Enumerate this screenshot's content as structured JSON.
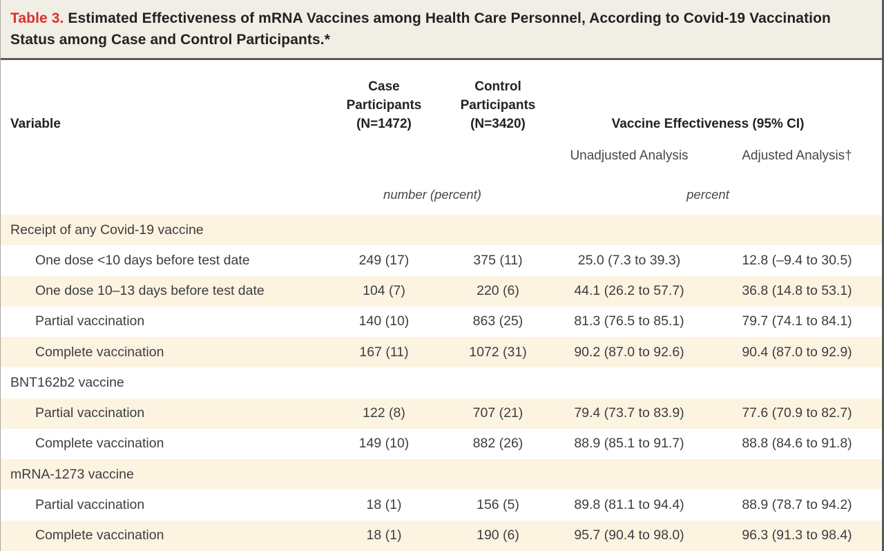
{
  "title": {
    "label": "Table 3.",
    "text": "Estimated Effectiveness of mRNA Vaccines among Health Care Personnel, According to Covid-19 Vaccination Status among Case and Control Participants.*"
  },
  "header": {
    "variable": "Variable",
    "case_participants": "Case\nParticipants\n(N=1472)",
    "control_participants": "Control\nParticipants\n(N=3420)",
    "effectiveness_group": "Vaccine Effectiveness (95% CI)",
    "unadjusted": "Unadjusted Analysis",
    "adjusted": "Adjusted Analysis†",
    "units_counts": "number (percent)",
    "units_effectiveness": "percent"
  },
  "chart_data": {
    "type": "table",
    "title": "Table 3. Estimated Effectiveness of mRNA Vaccines among Health Care Personnel, According to Covid-19 Vaccination Status among Case and Control Participants.*",
    "columns": [
      "Variable",
      "Case Participants (N=1472)",
      "Control Participants (N=3420)",
      "Vaccine Effectiveness (95% CI) — Unadjusted Analysis",
      "Vaccine Effectiveness (95% CI) — Adjusted Analysis†"
    ],
    "rows": [
      {
        "label": "Receipt of any Covid-19 vaccine",
        "group_header": true,
        "indent": false,
        "shaded": true,
        "case": "",
        "control": "",
        "unadjusted": "",
        "adjusted": ""
      },
      {
        "label": "One dose <10 days before test date",
        "group_header": false,
        "indent": true,
        "shaded": false,
        "case": "249 (17)",
        "control": "375 (11)",
        "unadjusted": "25.0 (7.3 to 39.3)",
        "adjusted": "12.8 (–9.4 to 30.5)"
      },
      {
        "label": "One dose 10–13 days before test date",
        "group_header": false,
        "indent": true,
        "shaded": true,
        "case": "104 (7)",
        "control": "220 (6)",
        "unadjusted": "44.1 (26.2 to 57.7)",
        "adjusted": "36.8 (14.8 to 53.1)"
      },
      {
        "label": "Partial vaccination",
        "group_header": false,
        "indent": true,
        "shaded": false,
        "case": "140 (10)",
        "control": "863 (25)",
        "unadjusted": "81.3 (76.5 to 85.1)",
        "adjusted": "79.7 (74.1 to 84.1)"
      },
      {
        "label": "Complete vaccination",
        "group_header": false,
        "indent": true,
        "shaded": true,
        "case": "167 (11)",
        "control": "1072 (31)",
        "unadjusted": "90.2 (87.0 to 92.6)",
        "adjusted": "90.4 (87.0 to 92.9)"
      },
      {
        "label": "BNT162b2 vaccine",
        "group_header": true,
        "indent": false,
        "shaded": false,
        "case": "",
        "control": "",
        "unadjusted": "",
        "adjusted": ""
      },
      {
        "label": "Partial vaccination",
        "group_header": false,
        "indent": true,
        "shaded": true,
        "case": "122 (8)",
        "control": "707 (21)",
        "unadjusted": "79.4 (73.7 to 83.9)",
        "adjusted": "77.6 (70.9 to 82.7)"
      },
      {
        "label": "Complete vaccination",
        "group_header": false,
        "indent": true,
        "shaded": false,
        "case": "149 (10)",
        "control": "882 (26)",
        "unadjusted": "88.9 (85.1 to 91.7)",
        "adjusted": "88.8 (84.6 to 91.8)"
      },
      {
        "label": "mRNA-1273 vaccine",
        "group_header": true,
        "indent": false,
        "shaded": true,
        "case": "",
        "control": "",
        "unadjusted": "",
        "adjusted": ""
      },
      {
        "label": "Partial vaccination",
        "group_header": false,
        "indent": true,
        "shaded": false,
        "case": "18 (1)",
        "control": "156 (5)",
        "unadjusted": "89.8 (81.1 to 94.4)",
        "adjusted": "88.9 (78.7 to 94.2)"
      },
      {
        "label": "Complete vaccination",
        "group_header": false,
        "indent": true,
        "shaded": true,
        "case": "18 (1)",
        "control": "190 (6)",
        "unadjusted": "95.7 (90.4 to 98.0)",
        "adjusted": "96.3 (91.3 to 98.4)"
      }
    ]
  },
  "colors": {
    "accent_red": "#d9322e",
    "title_band_bg": "#f1eee6",
    "stripe_bg": "#fdf3e1",
    "border_dark": "#595a5c",
    "border_soft": "#a9a7a1",
    "ink": "#3d3d3f",
    "ink_strong": "#242122",
    "ink_soft": "#47474a"
  }
}
